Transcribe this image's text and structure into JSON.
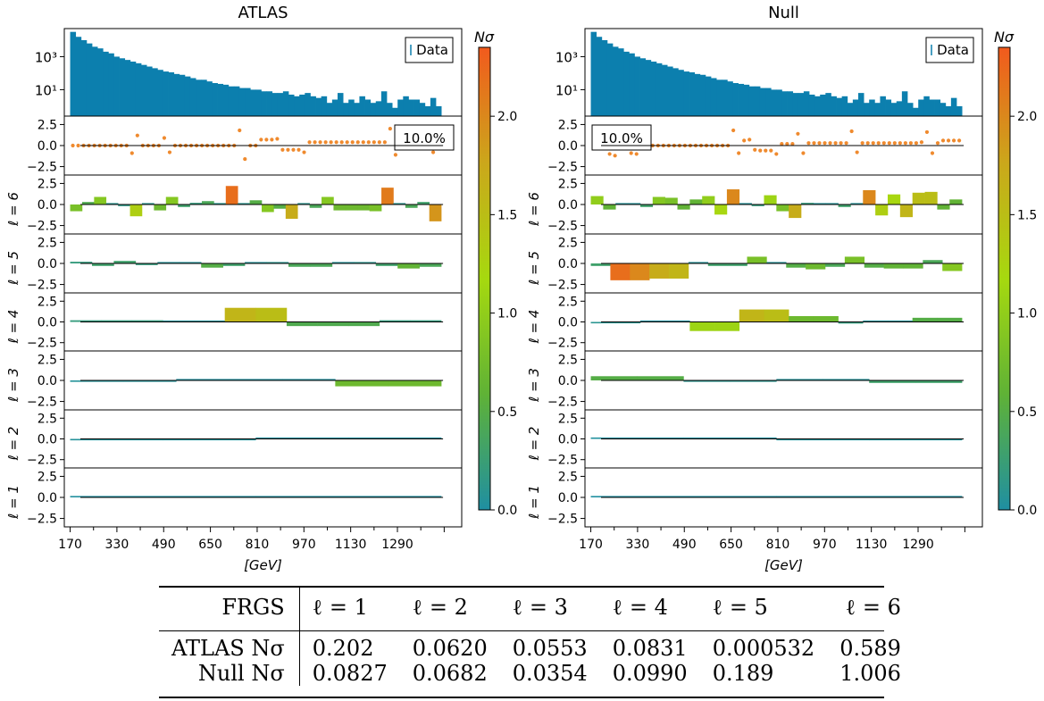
{
  "chart_data": {
    "type": "bar",
    "panels": [
      {
        "title": "ATLAS",
        "data_label": "Data",
        "pct_label": "10.0%",
        "pct_pos": "right",
        "spec_log10": [
          4.5,
          4.2,
          4.0,
          3.8,
          3.6,
          3.5,
          3.3,
          3.2,
          3.0,
          2.9,
          2.8,
          2.7,
          2.6,
          2.5,
          2.4,
          2.3,
          2.2,
          2.1,
          2.05,
          1.95,
          1.9,
          1.8,
          1.7,
          1.6,
          1.6,
          1.5,
          1.4,
          1.35,
          1.3,
          1.2,
          1.2,
          1.1,
          1.1,
          1.0,
          1.0,
          0.9,
          0.9,
          0.8,
          0.8,
          0.9,
          0.7,
          0.6,
          0.7,
          0.8,
          0.6,
          0.5,
          0.6,
          0.2,
          0.4,
          0.8,
          0.2,
          0.4,
          0.2,
          0.6,
          0.4,
          0.2,
          0.3,
          0.9,
          0.2,
          -0.1,
          0.4,
          0.6,
          0.4,
          0.4,
          0.2,
          0.0,
          0.5,
          0.0
        ],
        "residuals": [
          0.0,
          0.0,
          0.0,
          0.0,
          0.0,
          0.0,
          0.0,
          0.0,
          0.0,
          0.0,
          0.0,
          -0.9,
          1.2,
          0.0,
          0.0,
          0.0,
          0.0,
          0.9,
          -0.8,
          0.0,
          0.0,
          0.0,
          0.0,
          0.0,
          0.0,
          0.0,
          0.0,
          0.0,
          0.0,
          0.0,
          0.0,
          1.8,
          -1.6,
          0.0,
          0.0,
          0.7,
          0.7,
          0.7,
          0.8,
          -0.5,
          -0.5,
          -0.5,
          -0.5,
          -0.8,
          0.4,
          0.4,
          0.4,
          0.4,
          0.4,
          0.4,
          0.4,
          0.4,
          0.4,
          0.4,
          0.4,
          0.4,
          0.4,
          0.4,
          0.4,
          2.0,
          -1.1,
          0.0,
          0.0,
          0.0,
          0.0,
          0.0,
          0.0,
          -0.8,
          0.0
        ],
        "levels": [
          {
            "name": "ℓ = 6",
            "values": [
              -0.8,
              0.3,
              0.9,
              0.0,
              -0.2,
              -1.4,
              0.0,
              -0.7,
              0.9,
              -0.3,
              0.2,
              0.4,
              0.0,
              2.2,
              0.0,
              0.5,
              -0.9,
              -0.5,
              -1.7,
              0.0,
              -0.4,
              0.9,
              -0.7,
              -0.7,
              -0.7,
              -0.8,
              2.0,
              0.0,
              -0.4,
              0.3,
              -2.0
            ],
            "nsigma": [
              0.8,
              0.45,
              0.9,
              0.1,
              0.15,
              1.3,
              0.1,
              0.7,
              0.9,
              0.3,
              0.2,
              0.4,
              0.1,
              2.2,
              0.1,
              0.5,
              0.9,
              0.5,
              1.7,
              0.1,
              0.4,
              0.9,
              0.7,
              0.7,
              0.7,
              0.8,
              2.1,
              0.1,
              0.4,
              0.3,
              1.9
            ]
          },
          {
            "name": "ℓ = 5",
            "values": [
              0.2,
              -0.3,
              0.3,
              -0.2,
              0.0,
              0.0,
              -0.5,
              -0.3,
              0.0,
              0.1,
              -0.4,
              -0.4,
              0.0,
              0.1,
              -0.3,
              -0.6,
              -0.4
            ],
            "nsigma": [
              0.2,
              0.3,
              0.3,
              0.2,
              0.05,
              0.05,
              0.5,
              0.3,
              0.05,
              0.1,
              0.4,
              0.4,
              0.05,
              0.1,
              0.3,
              0.6,
              0.4
            ]
          },
          {
            "name": "ℓ = 4",
            "values": [
              0.2,
              0.2,
              0.2,
              0.0,
              0.0,
              1.7,
              1.7,
              -0.5,
              -0.5,
              -0.5,
              0.2,
              0.2
            ],
            "nsigma": [
              0.2,
              0.2,
              0.2,
              0.05,
              0.05,
              1.6,
              1.5,
              0.45,
              0.45,
              0.45,
              0.2,
              0.2
            ]
          },
          {
            "name": "ℓ = 3",
            "values": [
              -0.1,
              -0.1,
              0.0,
              0.0,
              0.0,
              -0.7,
              -0.7
            ],
            "nsigma": [
              0.05,
              0.05,
              0.02,
              0.02,
              0.02,
              0.7,
              0.7
            ]
          },
          {
            "name": "ℓ = 2",
            "values": [
              -0.1,
              -0.1,
              0.0,
              0.0
            ],
            "nsigma": [
              0.05,
              0.05,
              0.02,
              0.02
            ]
          },
          {
            "name": "ℓ = 1",
            "values": [
              0.05,
              0.05
            ],
            "nsigma": [
              0.02,
              0.02
            ]
          }
        ]
      },
      {
        "title": "Null",
        "data_label": "Data",
        "pct_label": "10.0%",
        "pct_pos": "left",
        "spec_log10": [
          4.5,
          4.2,
          4.0,
          3.8,
          3.6,
          3.5,
          3.3,
          3.2,
          3.0,
          2.9,
          2.8,
          2.7,
          2.6,
          2.5,
          2.4,
          2.3,
          2.2,
          2.1,
          2.05,
          1.95,
          1.9,
          1.8,
          1.7,
          1.6,
          1.6,
          1.5,
          1.4,
          1.35,
          1.3,
          1.2,
          1.2,
          1.1,
          1.1,
          1.0,
          1.0,
          0.9,
          0.9,
          0.8,
          0.8,
          0.9,
          0.7,
          0.6,
          0.7,
          0.8,
          0.6,
          0.5,
          0.6,
          0.2,
          0.4,
          0.8,
          0.2,
          0.4,
          0.2,
          0.6,
          0.4,
          0.2,
          0.3,
          0.9,
          0.2,
          -0.1,
          0.4,
          0.6,
          0.4,
          0.4,
          0.2,
          0.0,
          0.5,
          0.0
        ],
        "residuals": [
          0.0,
          0.0,
          0.0,
          -1.0,
          -1.2,
          0.0,
          0.0,
          -0.9,
          -1.0,
          1.1,
          1.2,
          0.0,
          0.0,
          0.0,
          0.0,
          0.0,
          0.0,
          0.0,
          0.0,
          0.0,
          0.0,
          0.0,
          0.0,
          0.0,
          0.0,
          0.0,
          1.8,
          -0.9,
          0.6,
          0.7,
          -0.5,
          -0.6,
          -0.6,
          -0.6,
          -1.0,
          0.2,
          0.2,
          0.2,
          1.4,
          -0.9,
          0.3,
          0.3,
          0.3,
          0.3,
          0.3,
          0.3,
          0.3,
          0.3,
          1.7,
          -0.8,
          0.3,
          0.3,
          0.3,
          0.3,
          0.3,
          0.3,
          0.3,
          0.3,
          0.3,
          0.3,
          0.3,
          0.4,
          1.6,
          -0.9,
          0.3,
          0.6,
          0.6,
          0.6,
          0.6
        ],
        "levels": [
          {
            "name": "ℓ = 6",
            "values": [
              1.0,
              -0.6,
              0.0,
              0.0,
              -0.3,
              0.9,
              0.8,
              -0.6,
              0.6,
              1.0,
              -1.2,
              1.8,
              0.0,
              -0.2,
              1.1,
              -0.8,
              -1.6,
              0.2,
              0.0,
              0.0,
              -0.3,
              0.0,
              1.7,
              -1.3,
              1.2,
              -1.5,
              1.4,
              1.5,
              -0.6,
              0.6
            ],
            "nsigma": [
              1.0,
              0.6,
              0.05,
              0.05,
              0.3,
              0.9,
              0.8,
              0.6,
              0.6,
              1.0,
              1.2,
              2.0,
              0.05,
              0.2,
              1.1,
              0.8,
              1.7,
              0.2,
              0.05,
              0.05,
              0.3,
              0.05,
              2.0,
              1.3,
              1.2,
              1.6,
              1.5,
              1.5,
              0.6,
              0.6
            ]
          },
          {
            "name": "ℓ = 5",
            "values": [
              -0.3,
              -2.0,
              -2.0,
              -1.8,
              -1.8,
              0.0,
              -0.3,
              -0.3,
              0.8,
              0.0,
              -0.5,
              -0.7,
              -0.4,
              0.8,
              -0.5,
              -0.6,
              -0.6,
              0.4,
              -0.9
            ],
            "nsigma": [
              0.3,
              2.2,
              2.0,
              1.7,
              1.6,
              0.05,
              0.3,
              0.3,
              0.8,
              0.05,
              0.5,
              0.7,
              0.4,
              0.8,
              0.5,
              0.6,
              0.6,
              0.4,
              0.9
            ]
          },
          {
            "name": "ℓ = 4",
            "values": [
              -0.1,
              -0.1,
              0.0,
              0.0,
              -1.1,
              -1.1,
              1.5,
              1.5,
              0.7,
              0.7,
              -0.2,
              0.0,
              0.0,
              0.5,
              0.5
            ],
            "nsigma": [
              0.1,
              0.1,
              0.02,
              0.02,
              1.1,
              1.1,
              1.6,
              1.5,
              0.7,
              0.7,
              0.2,
              0.05,
              0.05,
              0.5,
              0.5
            ]
          },
          {
            "name": "ℓ = 3",
            "values": [
              0.5,
              0.5,
              -0.1,
              -0.1,
              0.0,
              0.0,
              -0.3,
              -0.3
            ],
            "nsigma": [
              0.5,
              0.5,
              0.1,
              0.1,
              0.05,
              0.05,
              0.3,
              0.3
            ]
          },
          {
            "name": "ℓ = 2",
            "values": [
              0.0,
              0.0,
              -0.1,
              -0.1
            ],
            "nsigma": [
              0.02,
              0.02,
              0.05,
              0.05
            ]
          },
          {
            "name": "ℓ = 1",
            "values": [
              0.0,
              0.0
            ],
            "nsigma": [
              0.01,
              0.01
            ]
          }
        ]
      }
    ],
    "x_range_gev": [
      150,
      1510
    ],
    "x_ticks": [
      170,
      330,
      490,
      650,
      810,
      970,
      1130,
      1290
    ],
    "xlabel": "[GeV]",
    "spec_yticks": [
      "10³",
      "10¹"
    ],
    "yticks": [
      "2.5",
      "0.0",
      "−2.5"
    ],
    "ylim": [
      -3.5,
      3.5
    ],
    "colorbar": {
      "label": "Nσ",
      "range": [
        0,
        2.35
      ],
      "ticks": [
        "0.0",
        "0.5",
        "1.0",
        "1.5",
        "2.0"
      ],
      "colors": [
        "#1f8fa2",
        "#5fb236",
        "#a6d90f",
        "#cba71b",
        "#f25a1d"
      ]
    }
  },
  "table": {
    "headers": [
      "FRGS",
      "ℓ = 1",
      "ℓ = 2",
      "ℓ = 3",
      "ℓ = 4",
      "ℓ = 5",
      "ℓ = 6"
    ],
    "rows": [
      {
        "label": "ATLAS Nσ",
        "values": [
          "0.202",
          "0.0620",
          "0.0553",
          "0.0831",
          "0.000532",
          "0.589"
        ]
      },
      {
        "label": "Null Nσ",
        "values": [
          "0.0827",
          "0.0682",
          "0.0354",
          "0.0990",
          "0.189",
          "1.006"
        ]
      }
    ]
  }
}
